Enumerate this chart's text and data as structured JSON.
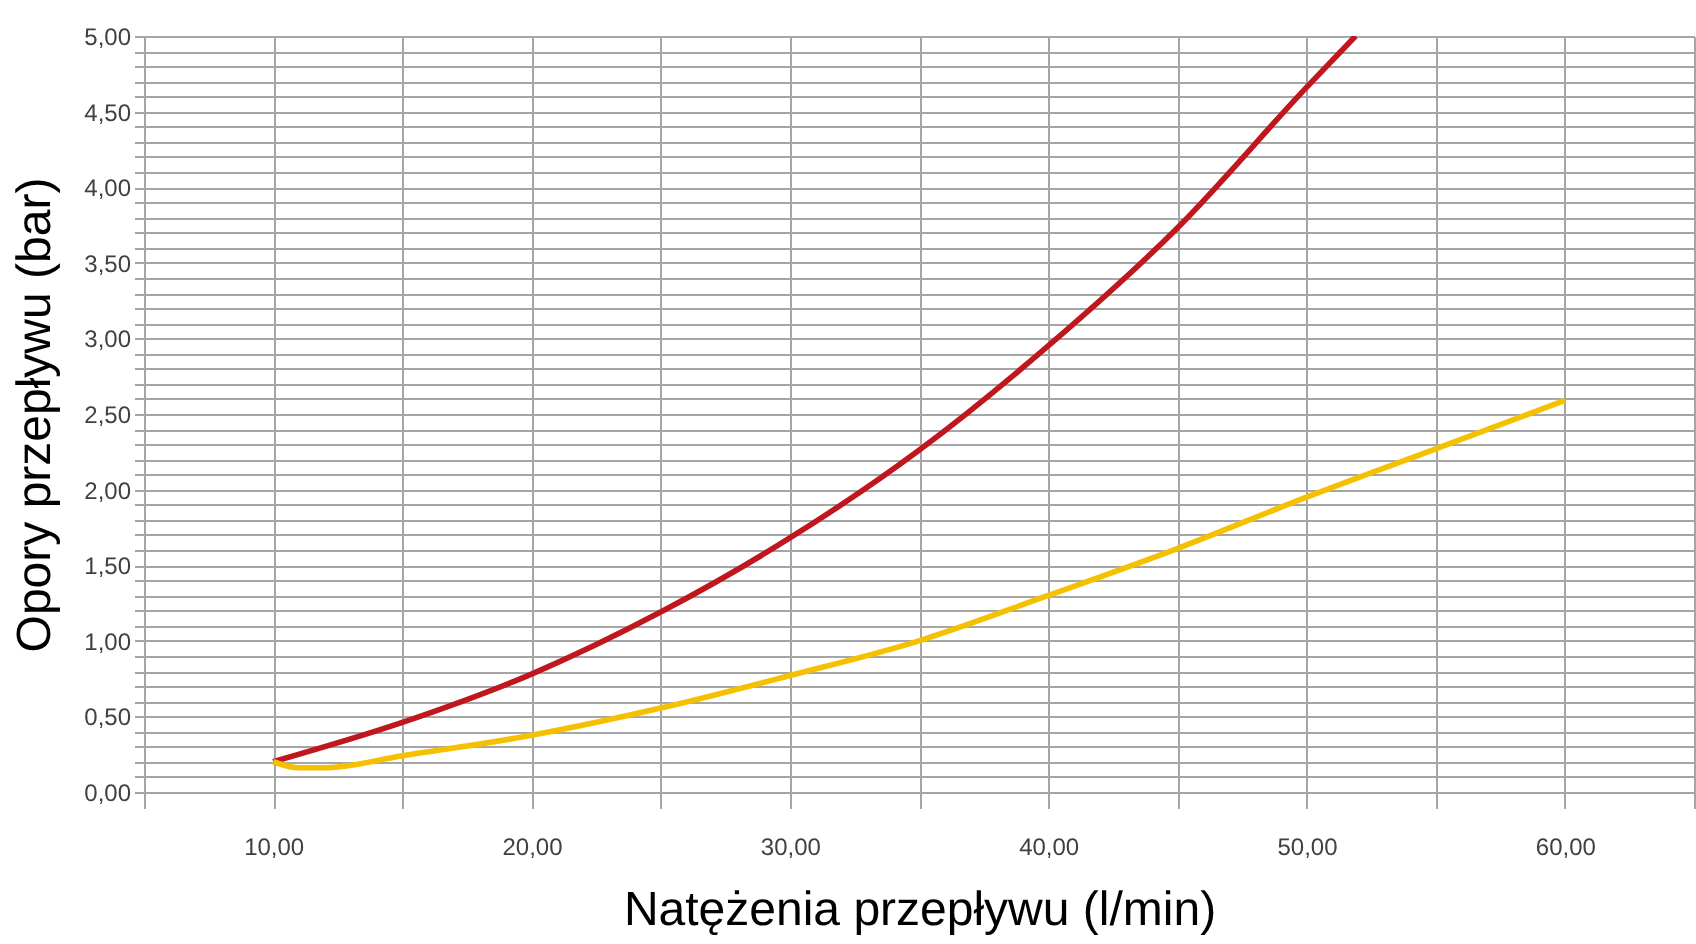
{
  "chart_data": {
    "type": "line",
    "xlabel": "Natężenia przepływu (l/min)",
    "ylabel": "Opory przepływu (bar)",
    "xlim": [
      5,
      65
    ],
    "xticks": [
      {
        "value": 5,
        "label": null
      },
      {
        "value": 10,
        "label": "10,00"
      },
      {
        "value": 15,
        "label": null
      },
      {
        "value": 20,
        "label": "20,00"
      },
      {
        "value": 25,
        "label": null
      },
      {
        "value": 30,
        "label": "30,00"
      },
      {
        "value": 35,
        "label": null
      },
      {
        "value": 40,
        "label": "40,00"
      },
      {
        "value": 45,
        "label": null
      },
      {
        "value": 50,
        "label": "50,00"
      },
      {
        "value": 55,
        "label": null
      },
      {
        "value": 60,
        "label": "60,00"
      },
      {
        "value": 65,
        "label": null
      }
    ],
    "ylim": [
      0,
      5
    ],
    "yticks": [
      {
        "value": 0,
        "label": "0,00"
      },
      {
        "value": 0.1,
        "label": null
      },
      {
        "value": 0.2,
        "label": null
      },
      {
        "value": 0.3,
        "label": null
      },
      {
        "value": 0.4,
        "label": null
      },
      {
        "value": 0.5,
        "label": "0,50"
      },
      {
        "value": 0.6,
        "label": null
      },
      {
        "value": 0.7,
        "label": null
      },
      {
        "value": 0.8,
        "label": null
      },
      {
        "value": 0.9,
        "label": null
      },
      {
        "value": 1,
        "label": "1,00"
      },
      {
        "value": 1.1,
        "label": null
      },
      {
        "value": 1.2,
        "label": null
      },
      {
        "value": 1.3,
        "label": null
      },
      {
        "value": 1.4,
        "label": null
      },
      {
        "value": 1.5,
        "label": "1,50"
      },
      {
        "value": 1.6,
        "label": null
      },
      {
        "value": 1.7,
        "label": null
      },
      {
        "value": 1.8,
        "label": null
      },
      {
        "value": 1.9,
        "label": null
      },
      {
        "value": 2,
        "label": "2,00"
      },
      {
        "value": 2.1,
        "label": null
      },
      {
        "value": 2.2,
        "label": null
      },
      {
        "value": 2.3,
        "label": null
      },
      {
        "value": 2.4,
        "label": null
      },
      {
        "value": 2.5,
        "label": "2,50"
      },
      {
        "value": 2.6,
        "label": null
      },
      {
        "value": 2.7,
        "label": null
      },
      {
        "value": 2.8,
        "label": null
      },
      {
        "value": 2.9,
        "label": null
      },
      {
        "value": 3,
        "label": "3,00"
      },
      {
        "value": 3.1,
        "label": null
      },
      {
        "value": 3.2,
        "label": null
      },
      {
        "value": 3.3,
        "label": null
      },
      {
        "value": 3.4,
        "label": null
      },
      {
        "value": 3.5,
        "label": "3,50"
      },
      {
        "value": 3.6,
        "label": null
      },
      {
        "value": 3.7,
        "label": null
      },
      {
        "value": 3.8,
        "label": null
      },
      {
        "value": 3.9,
        "label": null
      },
      {
        "value": 4,
        "label": "4,00"
      },
      {
        "value": 4.1,
        "label": null
      },
      {
        "value": 4.2,
        "label": null
      },
      {
        "value": 4.3,
        "label": null
      },
      {
        "value": 4.4,
        "label": null
      },
      {
        "value": 4.5,
        "label": "4,50"
      },
      {
        "value": 4.6,
        "label": null
      },
      {
        "value": 4.7,
        "label": null
      },
      {
        "value": 4.8,
        "label": null
      },
      {
        "value": 4.9,
        "label": null
      },
      {
        "value": 5,
        "label": "5,00"
      }
    ],
    "grid": true,
    "line_style": "solid",
    "series": [
      {
        "color": "#c0161e",
        "x": [
          10,
          15,
          20,
          25,
          30,
          35,
          40,
          45,
          50,
          51.9
        ],
        "values": [
          0.2,
          0.46,
          0.78,
          1.19,
          1.68,
          2.26,
          2.95,
          3.73,
          4.66,
          5.0
        ]
      },
      {
        "color": "#f5c000",
        "x": [
          10,
          11,
          12,
          15,
          20,
          25,
          30,
          35,
          40,
          45,
          50,
          55,
          60
        ],
        "values": [
          0.2,
          0.16,
          0.16,
          0.24,
          0.375,
          0.555,
          0.77,
          1.0,
          1.3,
          1.61,
          1.95,
          2.27,
          2.59
        ]
      }
    ]
  }
}
